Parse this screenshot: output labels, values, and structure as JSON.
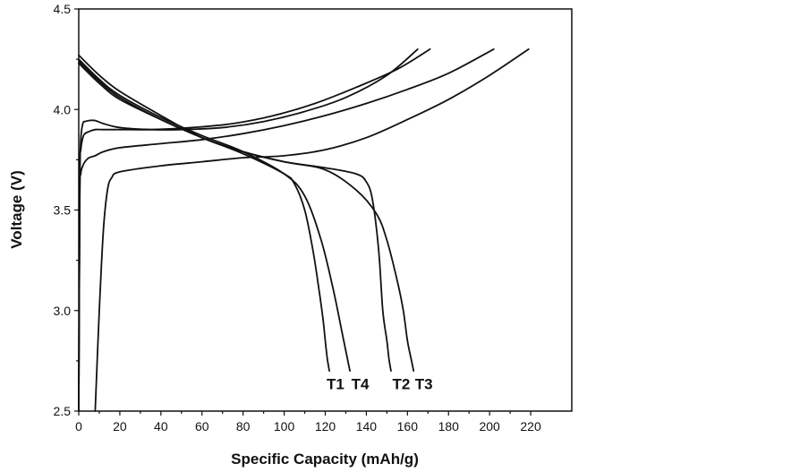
{
  "chart_data": {
    "type": "line",
    "title": "",
    "xlabel": "Specific Capacity (mAh/g)",
    "ylabel": "Voltage (V)",
    "xlim": [
      0,
      240
    ],
    "ylim": [
      2.5,
      4.5
    ],
    "x_ticks": [
      0,
      20,
      40,
      60,
      80,
      100,
      120,
      140,
      160,
      180,
      200,
      220
    ],
    "y_ticks": [
      2.5,
      3.0,
      3.5,
      4.0,
      4.5
    ],
    "x_tick_labels": [
      "0",
      "20",
      "40",
      "60",
      "80",
      "100",
      "120",
      "140",
      "160",
      "180",
      "200",
      "220"
    ],
    "y_tick_labels": [
      "2.5",
      "3.0",
      "3.5",
      "4.0",
      "4.5"
    ],
    "grid": false,
    "legend": "none",
    "series": [
      {
        "name": "T1 charge",
        "x": [
          0,
          0.5,
          1,
          2,
          3,
          5,
          8,
          12,
          20,
          35,
          50,
          70,
          90,
          110,
          130,
          150,
          165
        ],
        "y": [
          2.5,
          3.6,
          3.85,
          3.93,
          3.94,
          3.945,
          3.945,
          3.93,
          3.91,
          3.9,
          3.9,
          3.91,
          3.94,
          3.99,
          4.06,
          4.17,
          4.3
        ]
      },
      {
        "name": "T1 discharge",
        "x": [
          0,
          10,
          20,
          40,
          60,
          80,
          100,
          105,
          110,
          114,
          117,
          119,
          120,
          121,
          122
        ],
        "y": [
          4.24,
          4.14,
          4.06,
          3.95,
          3.86,
          3.78,
          3.68,
          3.63,
          3.5,
          3.3,
          3.1,
          2.95,
          2.85,
          2.76,
          2.7
        ]
      },
      {
        "name": "T4 charge",
        "x": [
          0,
          0.5,
          1,
          2,
          3,
          5,
          8,
          12,
          20,
          35,
          55,
          75,
          95,
          115,
          135,
          155,
          171
        ],
        "y": [
          2.5,
          3.65,
          3.8,
          3.86,
          3.88,
          3.89,
          3.9,
          3.9,
          3.9,
          3.9,
          3.91,
          3.93,
          3.97,
          4.03,
          4.11,
          4.2,
          4.3
        ]
      },
      {
        "name": "T4 discharge",
        "x": [
          0,
          10,
          20,
          40,
          60,
          80,
          100,
          110,
          118,
          124,
          128,
          130,
          131,
          132
        ],
        "y": [
          4.25,
          4.15,
          4.07,
          3.96,
          3.87,
          3.79,
          3.68,
          3.57,
          3.35,
          3.1,
          2.9,
          2.8,
          2.75,
          2.7
        ]
      },
      {
        "name": "T2 charge",
        "x": [
          0,
          0.5,
          1,
          2,
          3,
          5,
          8,
          12,
          20,
          40,
          60,
          80,
          100,
          120,
          140,
          160,
          180,
          202
        ],
        "y": [
          2.5,
          3.55,
          3.68,
          3.72,
          3.74,
          3.76,
          3.77,
          3.79,
          3.81,
          3.83,
          3.85,
          3.88,
          3.92,
          3.97,
          4.03,
          4.1,
          4.18,
          4.3
        ]
      },
      {
        "name": "T2 discharge",
        "x": [
          0,
          10,
          20,
          40,
          60,
          80,
          100,
          120,
          135,
          140,
          143,
          146,
          148,
          150,
          151,
          152
        ],
        "y": [
          4.27,
          4.17,
          4.09,
          3.97,
          3.86,
          3.79,
          3.74,
          3.71,
          3.68,
          3.64,
          3.55,
          3.3,
          3.0,
          2.85,
          2.76,
          2.7
        ]
      },
      {
        "name": "T3 charge",
        "x": [
          8,
          10,
          12,
          14,
          16,
          20,
          40,
          60,
          80,
          100,
          120,
          140,
          160,
          180,
          200,
          219
        ],
        "y": [
          2.5,
          3.0,
          3.4,
          3.6,
          3.66,
          3.69,
          3.72,
          3.74,
          3.76,
          3.77,
          3.8,
          3.86,
          3.95,
          4.05,
          4.17,
          4.3
        ]
      },
      {
        "name": "T3 discharge",
        "x": [
          0,
          10,
          20,
          40,
          60,
          80,
          100,
          120,
          135,
          145,
          150,
          155,
          158,
          160,
          162,
          163
        ],
        "y": [
          4.23,
          4.13,
          4.05,
          3.95,
          3.86,
          3.79,
          3.74,
          3.7,
          3.6,
          3.48,
          3.35,
          3.15,
          3.0,
          2.85,
          2.75,
          2.7
        ]
      }
    ],
    "annotations": [
      {
        "text": "T1",
        "x": 125,
        "y": 2.61
      },
      {
        "text": "T4",
        "x": 137,
        "y": 2.61
      },
      {
        "text": "T2",
        "x": 157,
        "y": 2.61
      },
      {
        "text": "T3",
        "x": 168,
        "y": 2.61
      }
    ]
  }
}
